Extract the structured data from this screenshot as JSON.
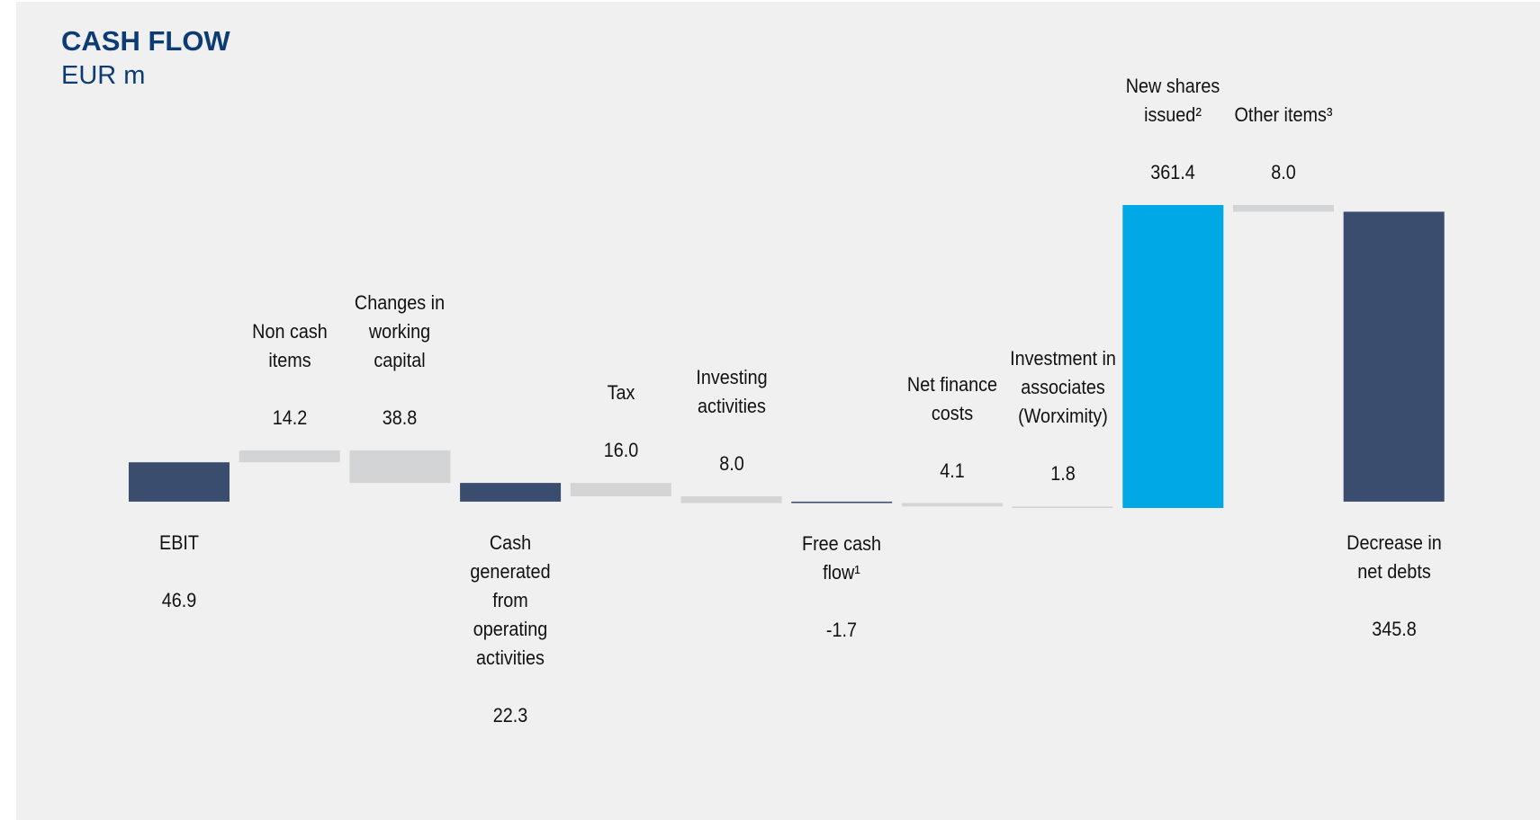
{
  "chart_data": {
    "type": "waterfall",
    "title": "CASH FLOW",
    "subtitle": "EUR m",
    "categories": [
      "EBIT",
      "Non cash items",
      "Changes in working capital",
      "Cash generated from operating activities",
      "Tax",
      "Investing activities",
      "Free cash flow¹",
      "Net finance costs",
      "Investment in associates (Worximity)",
      "New shares issued²",
      "Other items³",
      "Decrease in net debts"
    ],
    "values": [
      46.9,
      14.2,
      -38.8,
      22.3,
      -16.0,
      -8.0,
      -1.7,
      -4.1,
      -1.8,
      361.4,
      -8.0,
      345.8
    ],
    "value_labels": [
      "46.9",
      "14.2",
      "38.8",
      "22.3",
      "16.0",
      "8.0",
      "-1.7",
      "4.1",
      "1.8",
      "361.4",
      "8.0",
      "345.8"
    ],
    "totals": [
      true,
      false,
      false,
      true,
      false,
      false,
      true,
      false,
      false,
      false,
      false,
      true
    ],
    "colors": [
      "#3a4d6e",
      "#d3d4d6",
      "#d3d4d6",
      "#3a4d6e",
      "#d3d4d6",
      "#d3d4d6",
      "#3a4d6e",
      "#d3d4d6",
      "#d3d4d6",
      "#00a8e6",
      "#d3d4d6",
      "#3a4d6e"
    ]
  }
}
